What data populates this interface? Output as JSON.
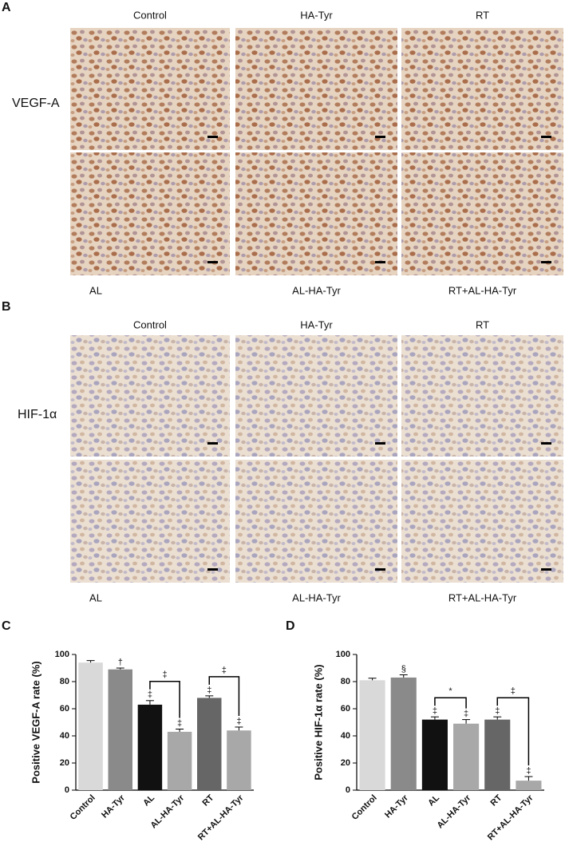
{
  "panel_a": {
    "label": "A",
    "row_label": "VEGF-A",
    "top_labels": [
      "Control",
      "HA-Tyr",
      "RT"
    ],
    "bottom_labels": [
      "AL",
      "AL-HA-Tyr",
      "RT+AL-HA-Tyr"
    ]
  },
  "panel_b": {
    "label": "B",
    "row_label": "HIF-1α",
    "top_labels": [
      "Control",
      "HA-Tyr",
      "RT"
    ],
    "bottom_labels": [
      "AL",
      "AL-HA-Tyr",
      "RT+AL-HA-Tyr"
    ]
  },
  "chart_data": [
    {
      "type": "bar",
      "panel": "C",
      "y_label": "Positive VEGF-A rate (%)",
      "categories": [
        "Control",
        "HA-Tyr",
        "AL",
        "AL-HA-Tyr",
        "RT",
        "RT+AL-HA-Tyr"
      ],
      "values": [
        94,
        89,
        63,
        43,
        68,
        44
      ],
      "errors": [
        1.5,
        1,
        3,
        2,
        1.5,
        2.5
      ],
      "colors": [
        "#d9d9d9",
        "#8a8a8a",
        "#111111",
        "#a8a8a8",
        "#666666",
        "#a8a8a8"
      ],
      "bar_labels": [
        null,
        "†",
        "‡",
        "‡",
        "‡",
        "‡"
      ],
      "comparisons": [
        {
          "from": 2,
          "to": 3,
          "label": "‡"
        },
        {
          "from": 4,
          "to": 5,
          "label": "‡"
        }
      ],
      "ylim": [
        0,
        100
      ],
      "yticks": [
        0,
        20,
        40,
        60,
        80,
        100
      ]
    },
    {
      "type": "bar",
      "panel": "D",
      "y_label": "Positive HIF-1α rate (%)",
      "categories": [
        "Control",
        "HA-Tyr",
        "AL",
        "AL-HA-Tyr",
        "RT",
        "RT+AL-HA-Tyr"
      ],
      "values": [
        81,
        83,
        52,
        49,
        52,
        7
      ],
      "errors": [
        1.5,
        2,
        2,
        3,
        2,
        3
      ],
      "colors": [
        "#d9d9d9",
        "#8a8a8a",
        "#111111",
        "#a8a8a8",
        "#666666",
        "#a8a8a8"
      ],
      "bar_labels": [
        null,
        "§",
        "‡",
        "‡",
        "‡",
        "‡"
      ],
      "comparisons": [
        {
          "from": 2,
          "to": 3,
          "label": "*"
        },
        {
          "from": 4,
          "to": 5,
          "label": "‡"
        }
      ],
      "ylim": [
        0,
        100
      ],
      "yticks": [
        0,
        20,
        40,
        60,
        80,
        100
      ]
    }
  ]
}
